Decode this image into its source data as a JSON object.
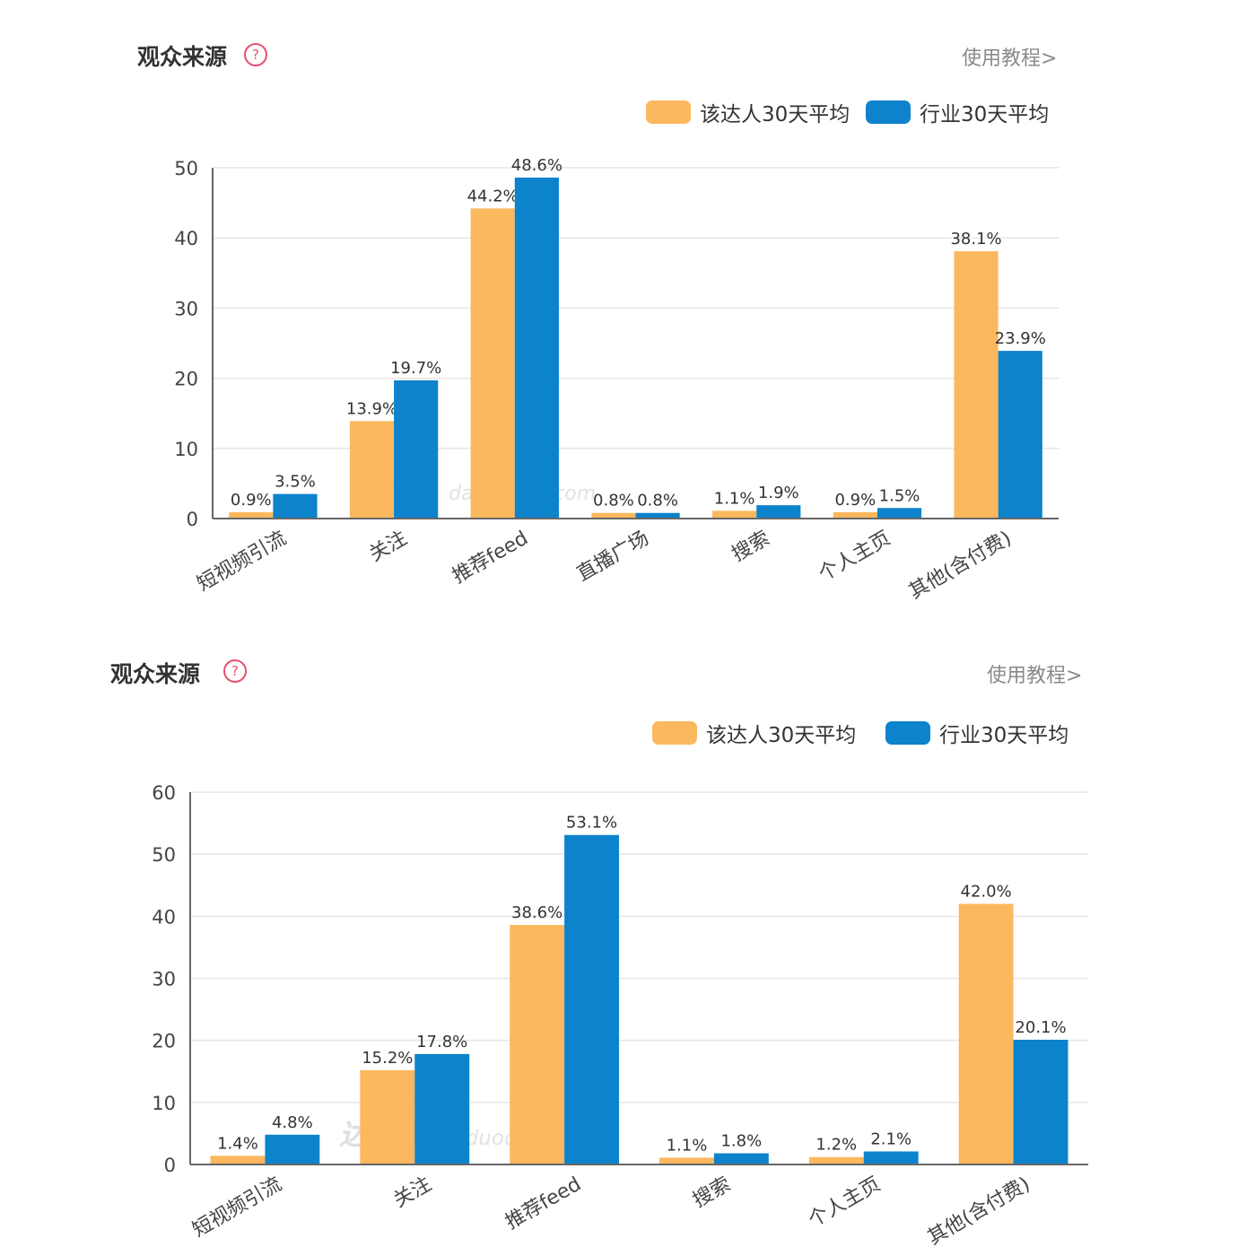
{
  "panels": [
    {
      "title": "观众来源",
      "help_icon": "?",
      "tutorial_link": "使用教程>",
      "legend": [
        "该达人30天平均",
        "行业30天平均"
      ],
      "watermark": {
        "logo": "达多多",
        "site": "daduoduo.com"
      }
    },
    {
      "title": "观众来源",
      "help_icon": "?",
      "tutorial_link": "使用教程>",
      "legend": [
        "该达人30天平均",
        "行业30天平均"
      ],
      "watermark": {
        "logo": "达多多",
        "site": "daduoduo.com"
      }
    }
  ],
  "colors": {
    "talent": "#fbb85e",
    "industry": "#0c83cb",
    "grid": "#e6e6e6",
    "axis": "#666666"
  },
  "chart_data": [
    {
      "type": "bar",
      "categories": [
        "短视频引流",
        "关注",
        "推荐feed",
        "直播广场",
        "搜索",
        "个人主页",
        "其他(含付费)"
      ],
      "series": [
        {
          "name": "该达人30天平均",
          "values": [
            0.9,
            13.9,
            44.2,
            0.8,
            1.1,
            0.9,
            38.1
          ],
          "labels": [
            "0.9%",
            "13.9%",
            "44.2%",
            "0.8%",
            "1.1%",
            "0.9%",
            "38.1%"
          ]
        },
        {
          "name": "行业30天平均",
          "values": [
            3.5,
            19.7,
            48.6,
            0.8,
            1.9,
            1.5,
            23.9
          ],
          "labels": [
            "3.5%",
            "19.7%",
            "48.6%",
            "0.8%",
            "1.9%",
            "1.5%",
            "23.9%"
          ]
        }
      ],
      "ylim": [
        0,
        50
      ],
      "yticks": [
        "0",
        "10",
        "20",
        "30",
        "40",
        "50"
      ],
      "grid": true,
      "legend_position": "top-right"
    },
    {
      "type": "bar",
      "categories": [
        "短视频引流",
        "关注",
        "推荐feed",
        "搜索",
        "个人主页",
        "其他(含付费)"
      ],
      "series": [
        {
          "name": "该达人30天平均",
          "values": [
            1.4,
            15.2,
            38.6,
            1.1,
            1.2,
            42.0
          ],
          "labels": [
            "1.4%",
            "15.2%",
            "38.6%",
            "1.1%",
            "1.2%",
            "42.0%"
          ]
        },
        {
          "name": "行业30天平均",
          "values": [
            4.8,
            17.8,
            53.1,
            1.8,
            2.1,
            20.1
          ],
          "labels": [
            "4.8%",
            "17.8%",
            "53.1%",
            "1.8%",
            "2.1%",
            "20.1%"
          ]
        }
      ],
      "ylim": [
        0,
        60
      ],
      "yticks": [
        "0",
        "10",
        "20",
        "30",
        "40",
        "50",
        "60"
      ],
      "grid": true,
      "legend_position": "top-right"
    }
  ]
}
